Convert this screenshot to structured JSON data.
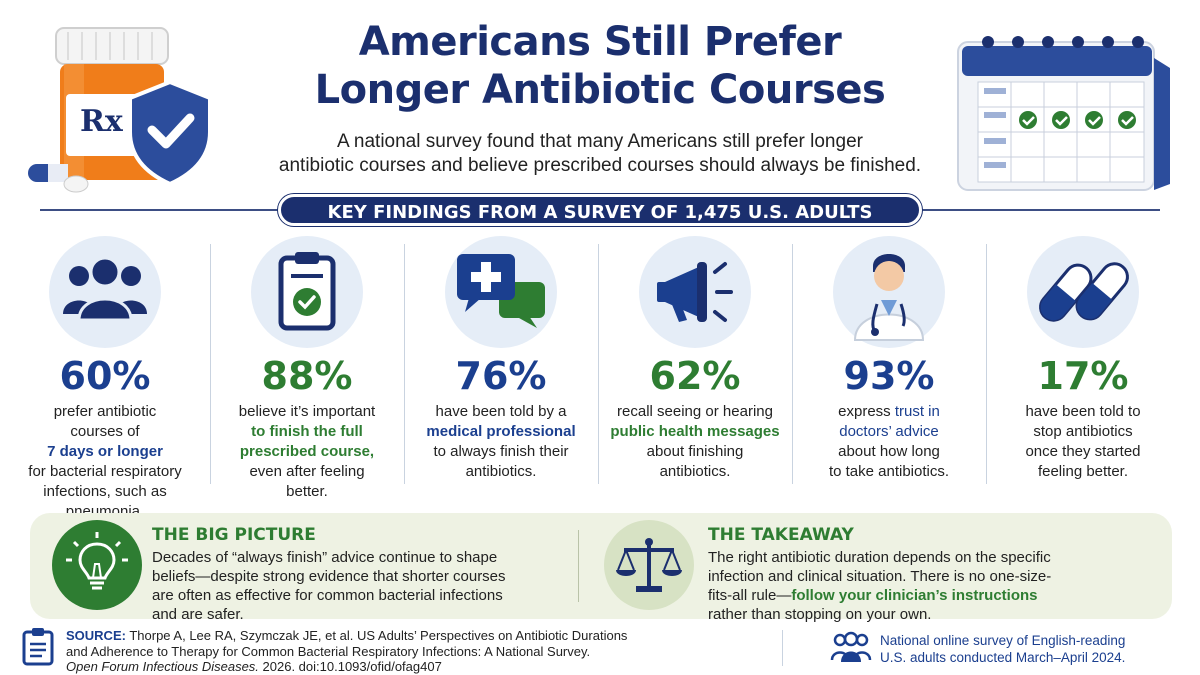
{
  "header": {
    "title_line1": "Americans Still Prefer",
    "title_line2": "Longer Antibiotic Courses",
    "subtitle_line1": "A national survey found that many Americans still prefer longer",
    "subtitle_line2": "antibiotic courses and believe prescribed courses should always be finished.",
    "bottle_label": "Rx"
  },
  "banner": {
    "text": "KEY FINDINGS FROM A SURVEY OF 1,475 U.S. ADULTS"
  },
  "stats": [
    {
      "icon": "people-group-icon",
      "value": "60%",
      "color": "#1b3f8f",
      "lines": [
        "prefer antibiotic",
        "courses of",
        "7 days or longer",
        "for bacterial respiratory",
        "infections, such as",
        "pneumonia."
      ]
    },
    {
      "icon": "clipboard-check-icon",
      "value": "88%",
      "color": "#2e7d32",
      "lines": [
        "believe it’s important",
        "to finish the full",
        "prescribed course,",
        "even after feeling",
        "better."
      ]
    },
    {
      "icon": "medical-chat-icon",
      "value": "76%",
      "color": "#1b3f8f",
      "lines": [
        "have been told by a",
        "medical professional",
        "to always finish their",
        "antibiotics."
      ]
    },
    {
      "icon": "megaphone-icon",
      "value": "62%",
      "color": "#2e7d32",
      "lines": [
        "recall seeing or hearing",
        "public health messages",
        "about finishing",
        "antibiotics."
      ]
    },
    {
      "icon": "doctor-icon",
      "value": "93%",
      "color": "#1b3f8f",
      "lines": [
        "express trust in",
        "doctors’ advice",
        "about how long",
        "to take antibiotics."
      ]
    },
    {
      "icon": "capsule-icon",
      "value": "17%",
      "color": "#2e7d32",
      "lines": [
        "have been told to",
        "stop antibiotics",
        "once they started",
        "feeling better."
      ]
    }
  ],
  "big_picture": {
    "heading": "THE BIG PICTURE",
    "line1": "Decades of “always finish” advice continue to shape",
    "line2": "beliefs—despite strong evidence that shorter courses",
    "line3": "are often as effective for common bacterial infections",
    "line4": "and are safer.",
    "icon": "lightbulb-icon"
  },
  "takeaway": {
    "heading": "THE TAKEAWAY",
    "line1": "The right antibiotic duration depends on the specific",
    "line2": "infection and clinical situation. There is no one-size-",
    "line3_plain": "fits-all rule—",
    "line3_highlight": "follow your clinician’s instructions",
    "line4": "rather than stopping on your own.",
    "icon": "balance-scale-icon"
  },
  "source": {
    "label": "SOURCE:",
    "line1": "Thorpe A, Lee RA, Szymczak JE, et al. US Adults’ Perspectives on Antibiotic Durations",
    "line2": "and Adherence to Therapy for Common Bacterial Respiratory Infections: A National Survey.",
    "journal": "Open Forum Infectious Diseases.",
    "citation": " 2026. doi:10.1093/ofid/ofag407"
  },
  "survey_note": {
    "line1": "National online survey of English-reading",
    "line2": "U.S. adults conducted March–April 2024."
  },
  "colors": {
    "navy": "#1b2f6e",
    "blue": "#1b3f8f",
    "green": "#2e7d32",
    "orange": "#f07d1a",
    "panel": "#eef2e3"
  }
}
